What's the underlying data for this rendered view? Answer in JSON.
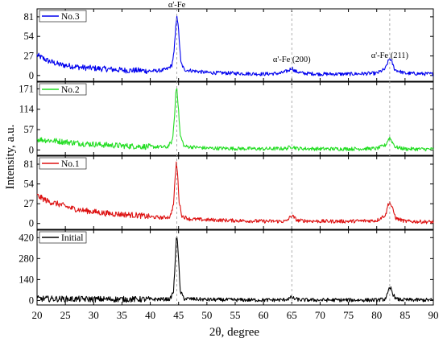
{
  "chart_data": {
    "type": "line",
    "xlabel": "2θ, degree",
    "ylabel": "Intensity, a.u.",
    "xlim": [
      20,
      90
    ],
    "x_ticks": [
      20,
      25,
      30,
      35,
      40,
      45,
      50,
      55,
      60,
      65,
      70,
      75,
      80,
      85,
      90
    ],
    "annotations": [
      {
        "text": "α'-Fe",
        "x": 44.7
      },
      {
        "text": "α'-Fe (200)",
        "x": 65.0
      },
      {
        "text": "α'-Fe (211)",
        "x": 82.3
      }
    ],
    "reference_lines_x": [
      44.7,
      65.0,
      82.3
    ],
    "panels": [
      {
        "name": "No.3",
        "color": "#0000ee",
        "ylim": [
          -8,
          92
        ],
        "y_ticks": [
          0,
          27,
          54,
          81
        ],
        "x": [
          20,
          22,
          24,
          26,
          28,
          30,
          32,
          34,
          36,
          38,
          40,
          42,
          43,
          43.8,
          44.2,
          44.5,
          44.7,
          45,
          45.4,
          46,
          50,
          55,
          60,
          63,
          64.5,
          65,
          65.5,
          67,
          70,
          75,
          80,
          81.5,
          82,
          82.3,
          82.7,
          83.2,
          85,
          90
        ],
        "values": [
          28,
          20,
          15,
          13,
          11,
          10,
          9,
          8,
          7,
          7,
          6,
          7,
          9,
          14,
          32,
          66,
          84,
          62,
          18,
          8,
          4,
          3,
          2,
          3,
          7,
          11,
          6,
          3,
          2,
          2,
          3,
          9,
          19,
          24,
          18,
          8,
          3,
          2
        ]
      },
      {
        "name": "No.2",
        "color": "#22dd22",
        "ylim": [
          -15,
          190
        ],
        "y_ticks": [
          0,
          57,
          114,
          171
        ],
        "x": [
          20,
          24,
          28,
          32,
          36,
          40,
          43,
          43.9,
          44.3,
          44.5,
          44.7,
          44.9,
          45.3,
          46,
          50,
          55,
          60,
          64,
          65,
          66,
          70,
          75,
          80,
          81.6,
          82,
          82.3,
          82.7,
          83.3,
          85,
          90
        ],
        "values": [
          30,
          24,
          18,
          14,
          11,
          9,
          8,
          25,
          95,
          160,
          176,
          130,
          40,
          10,
          5,
          4,
          3,
          4,
          10,
          4,
          3,
          3,
          4,
          14,
          28,
          34,
          24,
          8,
          3,
          2
        ]
      },
      {
        "name": "No.1",
        "color": "#dd1111",
        "ylim": [
          -8,
          92
        ],
        "y_ticks": [
          0,
          27,
          54,
          81
        ],
        "x": [
          20,
          22,
          24,
          26,
          28,
          30,
          32,
          34,
          36,
          38,
          40,
          42,
          43.5,
          44.1,
          44.4,
          44.6,
          44.8,
          45.1,
          45.6,
          47,
          50,
          55,
          60,
          64,
          65,
          66,
          70,
          75,
          80,
          81.6,
          82,
          82.3,
          82.8,
          83.4,
          85,
          90
        ],
        "values": [
          38,
          30,
          26,
          21,
          18,
          16,
          14,
          13,
          12,
          11,
          9,
          8,
          9,
          26,
          62,
          83,
          70,
          30,
          10,
          6,
          5,
          4,
          3,
          3,
          11,
          4,
          3,
          3,
          4,
          12,
          26,
          29,
          20,
          7,
          3,
          2
        ]
      },
      {
        "name": "Initial",
        "color": "#000000",
        "ylim": [
          -30,
          470
        ],
        "y_ticks": [
          0,
          140,
          280,
          420
        ],
        "x": [
          20,
          25,
          30,
          35,
          40,
          43.5,
          44.1,
          44.4,
          44.6,
          44.75,
          44.95,
          45.3,
          46,
          50,
          55,
          60,
          63.5,
          64.6,
          65,
          65.4,
          66.5,
          70,
          75,
          80,
          81.4,
          81.9,
          82.2,
          82.5,
          82.9,
          83.5,
          85,
          90
        ],
        "values": [
          12,
          10,
          9,
          8,
          8,
          9,
          60,
          250,
          420,
          440,
          300,
          60,
          12,
          6,
          4,
          3,
          4,
          14,
          22,
          12,
          4,
          3,
          3,
          3,
          8,
          40,
          75,
          82,
          40,
          8,
          4,
          3
        ]
      }
    ]
  }
}
